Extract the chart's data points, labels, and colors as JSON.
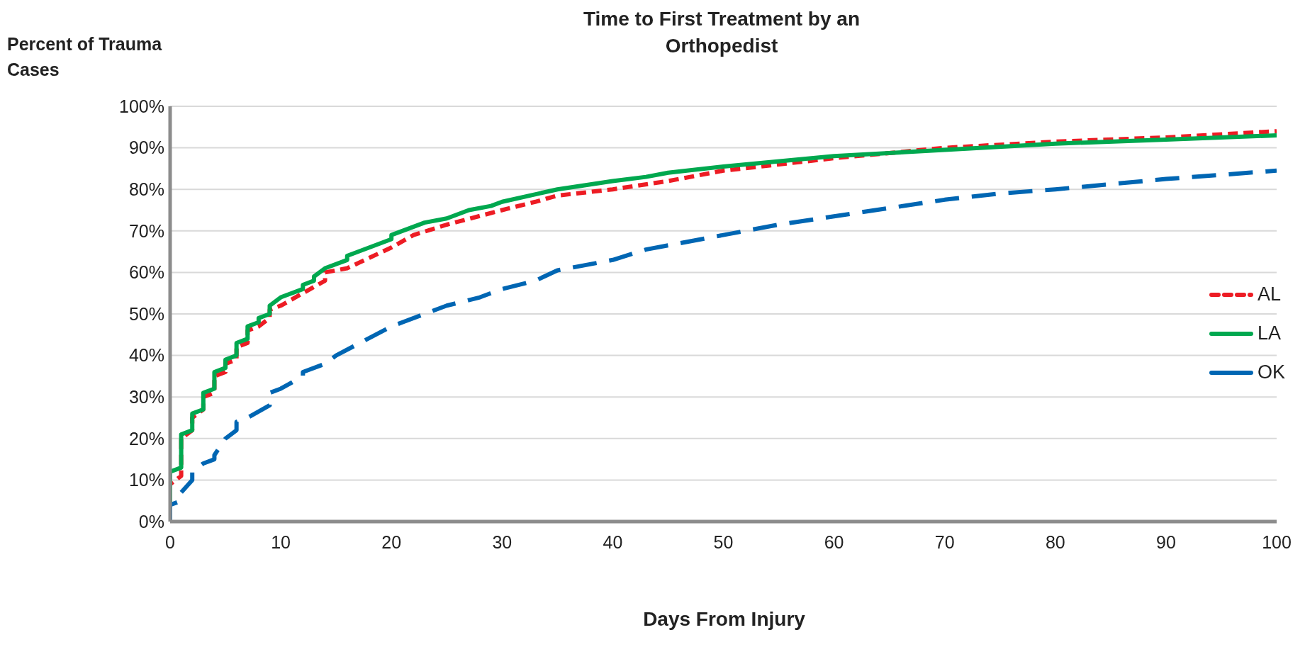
{
  "chart_data": {
    "type": "line",
    "title": "Time to First Treatment by an Orthopedist",
    "xlabel": "Days From Injury",
    "ylabel": "Percent of Trauma Cases",
    "xlim": [
      0,
      100
    ],
    "xticks": [
      0,
      10,
      20,
      30,
      40,
      50,
      60,
      70,
      80,
      90,
      100
    ],
    "ylim": [
      0,
      100
    ],
    "yticks": [
      {
        "value": 0,
        "label": "0%"
      },
      {
        "value": 10,
        "label": "10%"
      },
      {
        "value": 20,
        "label": "20%"
      },
      {
        "value": 30,
        "label": "30%"
      },
      {
        "value": 40,
        "label": "40%"
      },
      {
        "value": 50,
        "label": "50%"
      },
      {
        "value": 60,
        "label": "60%"
      },
      {
        "value": 70,
        "label": "70%"
      },
      {
        "value": 80,
        "label": "80%"
      },
      {
        "value": 90,
        "label": "90%"
      },
      {
        "value": 100,
        "label": "100%"
      }
    ],
    "grid": "y",
    "legend": "right",
    "marker": "none",
    "series": [
      {
        "name": "AL",
        "color": "#ed1c24",
        "line_style": "dotted",
        "x": [
          0,
          0,
          1,
          1,
          2,
          2,
          3,
          3,
          4,
          4,
          5,
          5,
          6,
          6,
          7,
          7,
          8,
          9,
          9,
          10,
          12,
          14,
          14,
          16,
          20,
          22,
          25,
          30,
          33,
          35,
          40,
          45,
          50,
          55,
          60,
          70,
          80,
          90,
          100
        ],
        "values": [
          0,
          9,
          11,
          20,
          22,
          25,
          27,
          30,
          31,
          35,
          36,
          38,
          39,
          42,
          43,
          46,
          47,
          49,
          51,
          52,
          55,
          58,
          60,
          61,
          66,
          69,
          71.5,
          75,
          77,
          78.5,
          80,
          82,
          84.5,
          86,
          87.5,
          90,
          91.5,
          92.5,
          94
        ]
      },
      {
        "name": "LA",
        "color": "#00a84f",
        "line_style": "solid",
        "x": [
          0,
          0,
          1,
          1,
          2,
          2,
          3,
          3,
          4,
          4,
          5,
          5,
          6,
          6,
          7,
          7,
          8,
          8,
          9,
          9,
          10,
          12,
          12,
          13,
          13,
          14,
          16,
          16,
          20,
          20,
          23,
          25,
          27,
          29,
          30,
          35,
          40,
          43,
          45,
          50,
          60,
          70,
          80,
          90,
          100
        ],
        "values": [
          0,
          12,
          13,
          21,
          22,
          26,
          27,
          31,
          32,
          36,
          37,
          39,
          40,
          43,
          44,
          47,
          48,
          49,
          50,
          52,
          54,
          56,
          57,
          58,
          59,
          61,
          63,
          64,
          68,
          69,
          72,
          73,
          75,
          76,
          77,
          80,
          82,
          83,
          84,
          85.5,
          88,
          89.5,
          91,
          92,
          93
        ]
      },
      {
        "name": "OK",
        "color": "#0066b3",
        "line_style": "dashed",
        "x": [
          0,
          0,
          1,
          1,
          2,
          2,
          3,
          4,
          4,
          5,
          6,
          6,
          7,
          9,
          9,
          10,
          12,
          12,
          14,
          15,
          20,
          21,
          25,
          28,
          30,
          33,
          35,
          40,
          43,
          50,
          55,
          60,
          65,
          70,
          75,
          80,
          90,
          100
        ],
        "values": [
          0,
          4,
          5,
          7,
          10,
          12,
          14,
          15,
          16,
          20,
          22,
          24,
          25,
          28,
          31,
          32,
          35,
          36,
          38,
          40,
          47,
          48,
          52,
          54,
          56,
          58,
          60.5,
          63,
          65.5,
          69,
          71.5,
          73.5,
          75.5,
          77.5,
          79,
          80,
          82.5,
          84.5
        ]
      }
    ]
  }
}
